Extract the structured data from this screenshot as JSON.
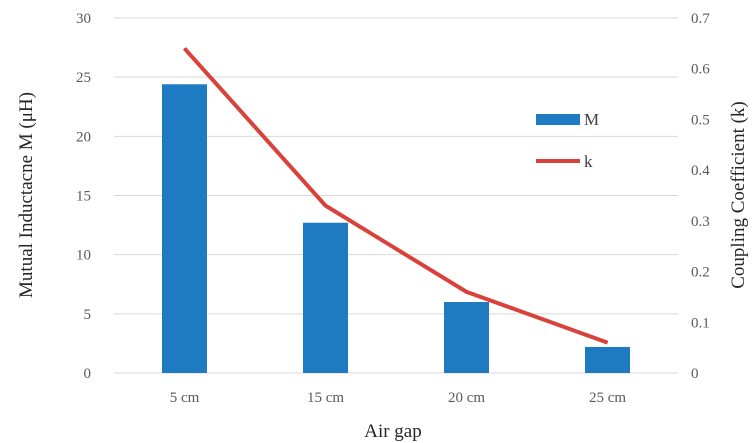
{
  "chart_data": {
    "type": "bar+line",
    "categories": [
      "5 cm",
      "15 cm",
      "20 cm",
      "25 cm"
    ],
    "series": [
      {
        "name": "M",
        "type": "bar",
        "axis": "left",
        "values": [
          24.4,
          12.7,
          6.0,
          2.2
        ],
        "color": "#1f7bc1"
      },
      {
        "name": "k",
        "type": "line",
        "axis": "right",
        "values": [
          0.64,
          0.33,
          0.16,
          0.06
        ],
        "color": "#d9413b"
      }
    ],
    "xlabel": "Air gap",
    "ylabel_left": "Mutual Inductacne M (μH)",
    "ylabel_right": "Coupling Coefficient (k)",
    "ylim_left": [
      0,
      30
    ],
    "yticks_left": [
      "0",
      "5",
      "10",
      "15",
      "20",
      "25",
      "30"
    ],
    "ylim_right": [
      0,
      0.7
    ],
    "yticks_right": [
      "0",
      "0.1",
      "0.2",
      "0.3",
      "0.4",
      "0.5",
      "0.6",
      "0.7"
    ],
    "grid": true,
    "legend_position": "right"
  }
}
